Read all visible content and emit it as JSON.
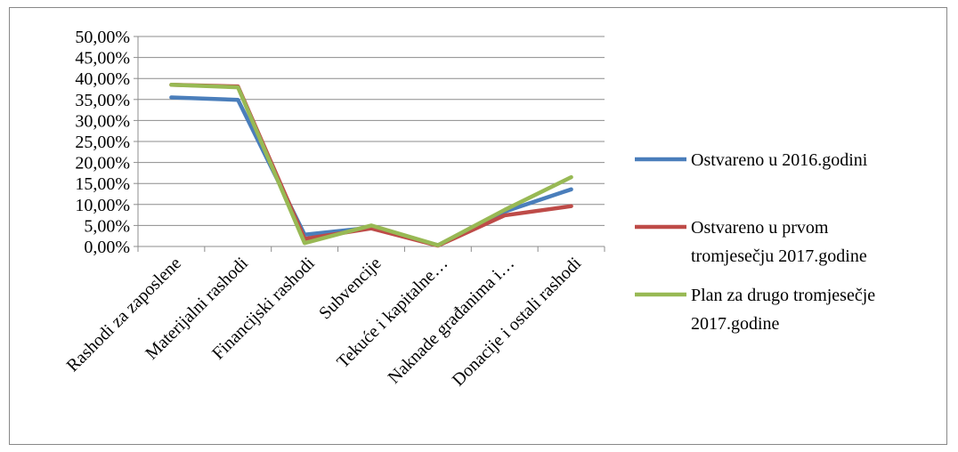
{
  "chart_data": {
    "type": "line",
    "categories": [
      "Rashodi za zaposlene",
      "Materijalni rashodi",
      "Financijski rashodi",
      "Subvencije",
      "Tekuće i kapitalne…",
      "Naknade građanima i…",
      "Donacije i ostali rashodi"
    ],
    "yticks": [
      "0,00%",
      "5,00%",
      "10,00%",
      "15,00%",
      "20,00%",
      "25,00%",
      "30,00%",
      "35,00%",
      "40,00%",
      "45,00%",
      "50,00%"
    ],
    "ylim": [
      0,
      50
    ],
    "grid": true,
    "legend_position": "right",
    "series": [
      {
        "name": "Ostvareno u 2016.godini",
        "legend_lines": [
          "Ostvareno u 2016.godini"
        ],
        "color": "#4a7ebb",
        "values": [
          35.5,
          34.9,
          2.8,
          4.5,
          0.3,
          8.3,
          13.6
        ]
      },
      {
        "name": "Ostvareno u prvom tromjesečju 2017.godine",
        "legend_lines": [
          "Ostvareno u prvom",
          "tromjesečju 2017.godine"
        ],
        "color": "#be4b48",
        "values": [
          38.5,
          38.1,
          1.8,
          4.3,
          0.2,
          7.4,
          9.6
        ]
      },
      {
        "name": "Plan za drugo tromjesečje 2017.godine",
        "legend_lines": [
          "Plan za drugo tromjesečje",
          "2017.godine"
        ],
        "color": "#98b954",
        "values": [
          38.5,
          37.9,
          0.8,
          5.0,
          0.3,
          8.7,
          16.5
        ]
      }
    ]
  }
}
